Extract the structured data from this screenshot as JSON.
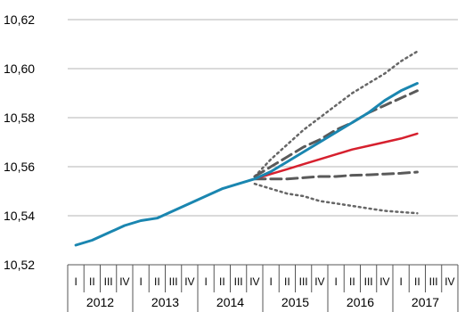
{
  "colors": {
    "actual": "#1a86b0",
    "baseline": "#d6202e",
    "dashed": "#5a5a5a",
    "dotted": "#666666",
    "grid": "#b5b5b5",
    "axis": "#555555"
  },
  "chart_data": {
    "type": "line",
    "title": "",
    "xlabel": "",
    "ylabel": "",
    "ylim": [
      10.52,
      10.62
    ],
    "yticks": [
      10.52,
      10.54,
      10.56,
      10.58,
      10.6,
      10.62
    ],
    "ytick_labels": [
      "10,52",
      "10,54",
      "10,56",
      "10,58",
      "10,60",
      "10,62"
    ],
    "grid": "horizontal",
    "legend": "none",
    "quarter_labels": [
      "I",
      "II",
      "III",
      "IV",
      "I",
      "II",
      "III",
      "IV",
      "I",
      "II",
      "III",
      "IV",
      "I",
      "II",
      "III",
      "IV",
      "I",
      "II",
      "III",
      "IV",
      "I",
      "II",
      "III",
      "IV"
    ],
    "years": [
      "2012",
      "2013",
      "2014",
      "2015",
      "2016",
      "2017"
    ],
    "series": [
      {
        "key": "actual",
        "style": "solid",
        "x": [
          1,
          2,
          3,
          4,
          5,
          6,
          7,
          8,
          9,
          10,
          11,
          12,
          13,
          14,
          15,
          16,
          17,
          18,
          19,
          20,
          21,
          22
        ],
        "values": [
          10.528,
          10.53,
          10.533,
          10.536,
          10.538,
          10.539,
          10.542,
          10.545,
          10.548,
          10.551,
          10.553,
          10.555,
          10.558,
          10.562,
          10.566,
          10.57,
          10.574,
          10.578,
          10.582,
          10.587,
          10.591,
          10.594
        ]
      },
      {
        "key": "baseline",
        "style": "solid",
        "x": [
          12,
          13,
          14,
          15,
          16,
          17,
          18,
          19,
          20,
          21,
          22
        ],
        "values": [
          10.555,
          10.557,
          10.559,
          10.561,
          10.563,
          10.565,
          10.567,
          10.5685,
          10.57,
          10.5715,
          10.5735
        ]
      },
      {
        "key": "dashed_upper",
        "style": "dashed",
        "x": [
          12,
          13,
          14,
          15,
          16,
          17,
          18,
          19,
          20,
          21,
          22
        ],
        "values": [
          10.556,
          10.56,
          10.564,
          10.568,
          10.571,
          10.575,
          10.578,
          10.582,
          10.585,
          10.588,
          10.591
        ]
      },
      {
        "key": "dashed_lower",
        "style": "dashed",
        "x": [
          12,
          13,
          14,
          15,
          16,
          17,
          18,
          19,
          20,
          21,
          22
        ],
        "values": [
          10.555,
          10.555,
          10.555,
          10.5555,
          10.556,
          10.556,
          10.5565,
          10.5567,
          10.557,
          10.5573,
          10.5578
        ]
      },
      {
        "key": "dotted_upper",
        "style": "dotted",
        "x": [
          12,
          13,
          14,
          15,
          16,
          17,
          18,
          19,
          20,
          21,
          22
        ],
        "values": [
          10.556,
          10.563,
          10.569,
          10.575,
          10.58,
          10.585,
          10.59,
          10.594,
          10.598,
          10.603,
          10.607
        ]
      },
      {
        "key": "dotted_lower",
        "style": "dotted",
        "x": [
          12,
          13,
          14,
          15,
          16,
          17,
          18,
          19,
          20,
          21,
          22
        ],
        "values": [
          10.553,
          10.551,
          10.549,
          10.548,
          10.546,
          10.545,
          10.544,
          10.543,
          10.542,
          10.5415,
          10.541
        ]
      }
    ]
  }
}
